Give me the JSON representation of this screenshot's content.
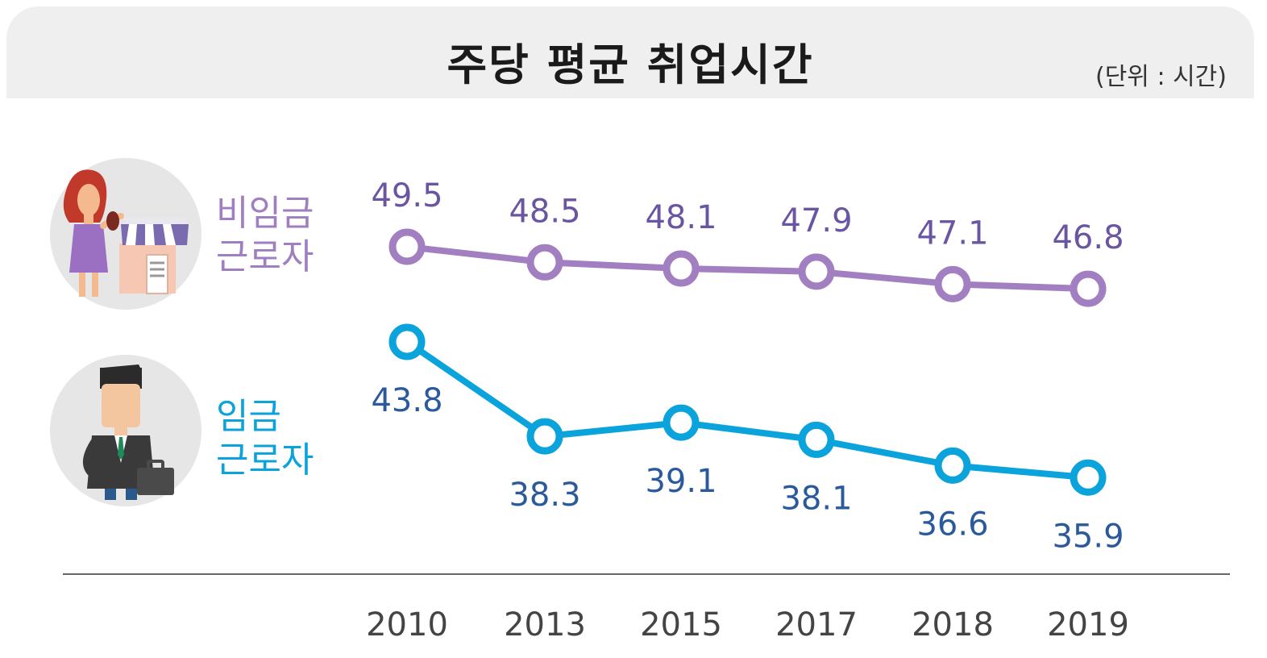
{
  "header": {
    "title": "주당 평균 취업시간",
    "unit": "(단위 : 시간)"
  },
  "legend": {
    "nonwage": {
      "line1": "비임금",
      "line2": "근로자",
      "icon": "shopkeeper-woman-icon"
    },
    "wage": {
      "line1": "임금",
      "line2": "근로자",
      "icon": "businessman-icon"
    }
  },
  "colors": {
    "nonwage": "#a27fc0",
    "nonwage_text": "#6a55a3",
    "wage": "#0aa3dc",
    "wage_text": "#2a5a9c",
    "axis": "#666666"
  },
  "chart_data": {
    "type": "line",
    "title": "주당 평균 취업시간",
    "unit": "(단위 : 시간)",
    "categories": [
      "2010",
      "2013",
      "2015",
      "2017",
      "2018",
      "2019"
    ],
    "series": [
      {
        "name": "비임금 근로자",
        "values": [
          49.5,
          48.5,
          48.1,
          47.9,
          47.1,
          46.8
        ]
      },
      {
        "name": "임금 근로자",
        "values": [
          43.8,
          38.3,
          39.1,
          38.1,
          36.6,
          35.9
        ]
      }
    ],
    "xlabel": "",
    "ylabel": "",
    "grid": false,
    "data_labels": true
  }
}
